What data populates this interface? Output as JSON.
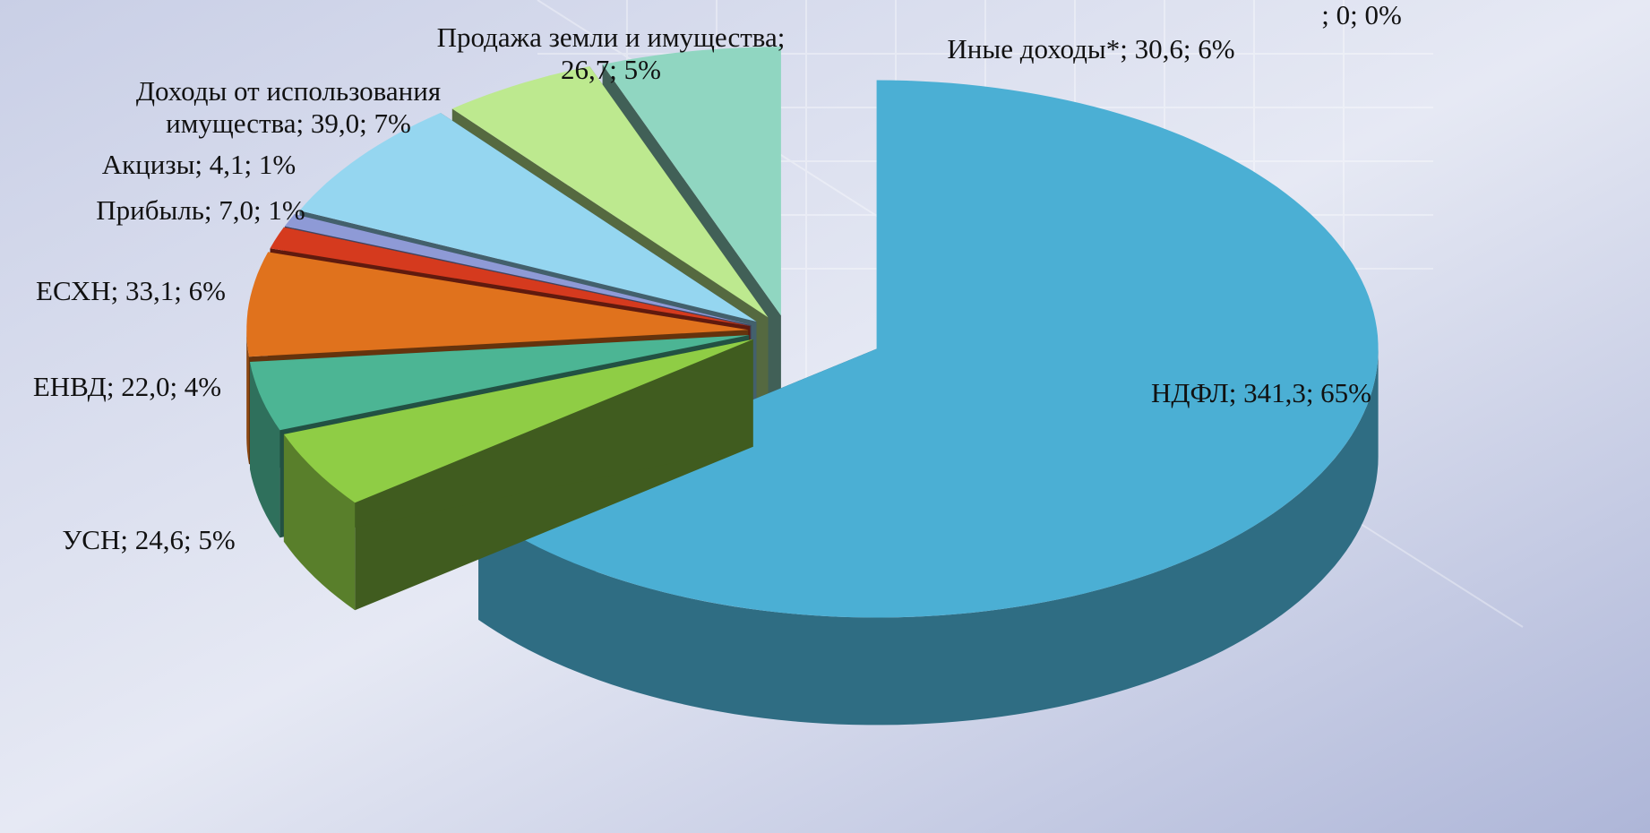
{
  "chart_data": {
    "type": "pie3d",
    "values": [
      341.3,
      24.6,
      22.0,
      33.1,
      7.0,
      4.1,
      39.0,
      26.7,
      30.6,
      0
    ],
    "percents": [
      65,
      5,
      4,
      6,
      1,
      1,
      7,
      5,
      6,
      0
    ],
    "value_labels": [
      [
        "НДФЛ; 341,3; 65%"
      ],
      [
        "УСН; 24,6; 5%"
      ],
      [
        "ЕНВД; 22,0; 4%"
      ],
      [
        "ЕСХН; 33,1; 6%"
      ],
      [
        "Прибыль; 7,0; 1%"
      ],
      [
        "Акцизы; 4,1; 1%"
      ],
      [
        "Доходы от использования",
        "имущества; 39,0; 7%"
      ],
      [
        "Продажа земли и имущества;",
        "26,7; 5%"
      ],
      [
        "Иные доходы*; 30,6; 6%"
      ],
      [
        "; 0; 0%"
      ]
    ],
    "colors": [
      "#4bafd4",
      "#8fcd45",
      "#4cb594",
      "#e0721d",
      "#d53a1e",
      "#8e9ad6",
      "#95d6f0",
      "#bde98f",
      "#90d6c1",
      "#999999"
    ]
  }
}
